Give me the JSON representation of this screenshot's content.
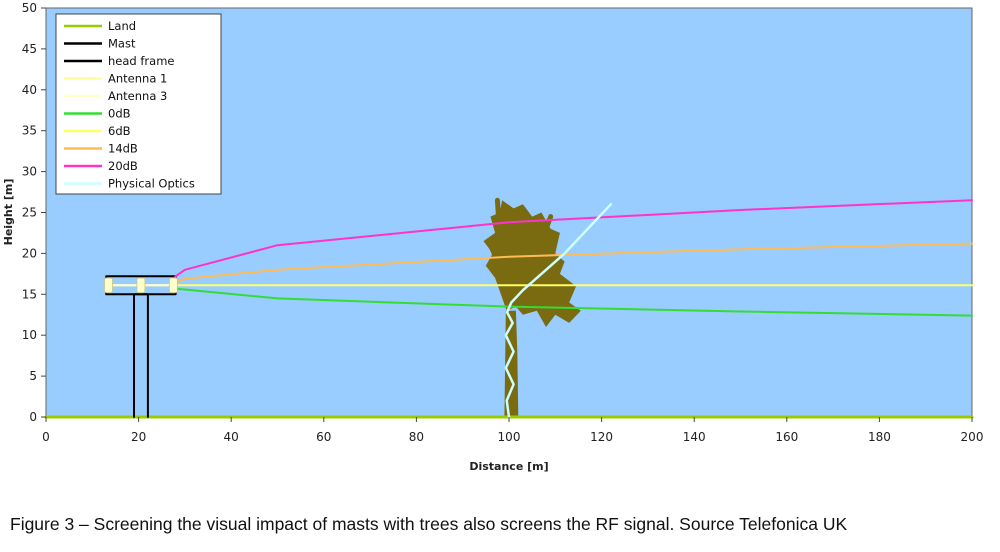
{
  "chart_data": {
    "type": "line",
    "title": "",
    "xlabel": "Distance [m]",
    "ylabel": "Height [m]",
    "xlim": [
      0,
      200
    ],
    "ylim": [
      0,
      50
    ],
    "xticks": [
      0,
      20,
      40,
      60,
      80,
      100,
      120,
      140,
      160,
      180,
      200
    ],
    "yticks": [
      0,
      5,
      10,
      15,
      20,
      25,
      30,
      35,
      40,
      45,
      50
    ],
    "grid": false,
    "legend_position": "top-left",
    "background_color": "#99ccff",
    "series": [
      {
        "name": "Land",
        "color": "#99cc00",
        "x": [
          0,
          200
        ],
        "y": [
          0,
          0
        ]
      },
      {
        "name": "Mast",
        "color": "#000000",
        "x": [
          19,
          19,
          22,
          22
        ],
        "y": [
          0,
          15,
          15,
          0
        ]
      },
      {
        "name": "head frame",
        "color": "#000000",
        "x": [
          13,
          28,
          28,
          13,
          13
        ],
        "y": [
          15,
          15,
          17.2,
          17.2,
          15
        ]
      },
      {
        "name": "Antenna 1",
        "color": "#ffff99",
        "x": [
          13,
          28
        ],
        "y": [
          16.1,
          16.1
        ]
      },
      {
        "name": "Antenna 3",
        "color": "#ffffcc",
        "x": [
          13,
          28
        ],
        "y": [
          16.1,
          16.1
        ]
      },
      {
        "name": "0dB",
        "color": "#33dd33",
        "x": [
          28,
          50,
          100,
          150,
          200
        ],
        "y": [
          15.7,
          14.5,
          13.5,
          12.9,
          12.4
        ]
      },
      {
        "name": "6dB",
        "color": "#ffff66",
        "x": [
          28,
          200
        ],
        "y": [
          16.1,
          16.1
        ]
      },
      {
        "name": "14dB",
        "color": "#ffbb55",
        "x": [
          27,
          30,
          50,
          100,
          150,
          200
        ],
        "y": [
          16.2,
          16.9,
          18.0,
          19.6,
          20.5,
          21.2
        ]
      },
      {
        "name": "20dB",
        "color": "#ff33cc",
        "x": [
          27,
          28,
          30,
          50,
          100,
          150,
          200
        ],
        "y": [
          16.3,
          17.2,
          18.0,
          21.0,
          23.8,
          25.3,
          26.5
        ]
      },
      {
        "name": "Physical Optics",
        "color": "#ccffff",
        "x": [
          100,
          99.5,
          101,
          99.3,
          101,
          99.3,
          100.8,
          99.6,
          100.5,
          103,
          107,
          112,
          117,
          122
        ],
        "y": [
          0,
          2,
          4,
          6,
          8,
          10,
          11.5,
          12.8,
          14,
          15.5,
          17.5,
          20,
          23,
          26
        ]
      }
    ],
    "annotations": [
      {
        "type": "tree-silhouette",
        "x_center": 106,
        "y_range": [
          0,
          26.5
        ]
      }
    ]
  },
  "caption": "Figure 3 – Screening the visual impact of masts with trees also screens the RF signal. Source Telefonica UK"
}
